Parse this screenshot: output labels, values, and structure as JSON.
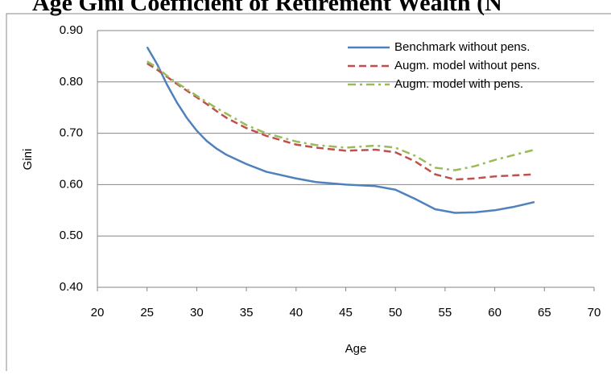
{
  "chart_data": {
    "type": "line",
    "title": "Age Gini Coefficient of Retirement Wealth (N",
    "x_label": "Age",
    "y_label": "Gini",
    "x": [
      25,
      26,
      27,
      28,
      29,
      30,
      31,
      32,
      33,
      35,
      37,
      40,
      42,
      45,
      48,
      50,
      52,
      54,
      56,
      58,
      60,
      62,
      64
    ],
    "series": [
      {
        "name": "Benchmark without pens.",
        "color": "#4f81bd",
        "dash": "solid",
        "values": [
          0.868,
          0.835,
          0.795,
          0.76,
          0.73,
          0.705,
          0.685,
          0.67,
          0.658,
          0.64,
          0.625,
          0.612,
          0.605,
          0.6,
          0.597,
          0.59,
          0.572,
          0.552,
          0.545,
          0.546,
          0.55,
          0.557,
          0.566
        ]
      },
      {
        "name": "Augm. model without pens.",
        "color": "#c0504d",
        "dash": "dashed",
        "values": [
          0.836,
          0.824,
          0.81,
          0.796,
          0.783,
          0.77,
          0.757,
          0.743,
          0.73,
          0.71,
          0.695,
          0.678,
          0.672,
          0.666,
          0.668,
          0.663,
          0.645,
          0.62,
          0.61,
          0.612,
          0.616,
          0.618,
          0.62
        ]
      },
      {
        "name": "Augm. model with pens.",
        "color": "#9bbb59",
        "dash": "dashdot",
        "values": [
          0.84,
          0.828,
          0.812,
          0.798,
          0.786,
          0.773,
          0.761,
          0.749,
          0.738,
          0.716,
          0.7,
          0.684,
          0.677,
          0.672,
          0.676,
          0.672,
          0.656,
          0.633,
          0.628,
          0.636,
          0.648,
          0.658,
          0.668
        ]
      }
    ],
    "xlim": [
      20,
      70
    ],
    "xticks": [
      20,
      25,
      30,
      35,
      40,
      45,
      50,
      55,
      60,
      65,
      70
    ],
    "ylim": [
      0.4,
      0.9
    ],
    "yticks": [
      {
        "value": 0.4,
        "label": "0.40"
      },
      {
        "value": 0.5,
        "label": "0.50"
      },
      {
        "value": 0.6,
        "label": "0.60"
      },
      {
        "value": 0.7,
        "label": "0.70"
      },
      {
        "value": 0.8,
        "label": "0.80"
      },
      {
        "value": 0.9,
        "label": "0.90"
      }
    ],
    "grid": true,
    "legend": "upper right"
  }
}
